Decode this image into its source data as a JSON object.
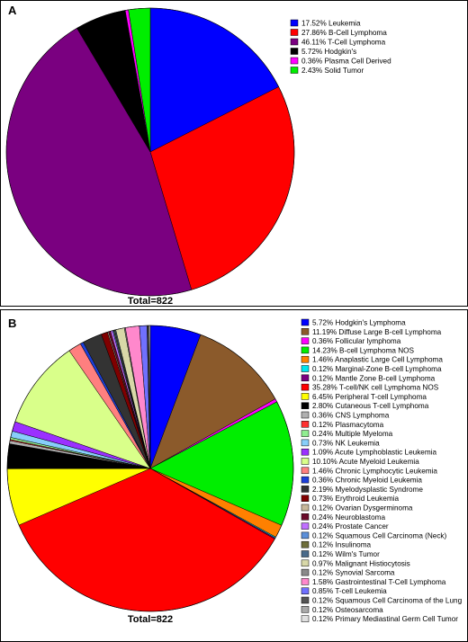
{
  "chart_data": [
    {
      "panel": "A",
      "type": "pie",
      "total_label": "Total=822",
      "slices": [
        {
          "label": "17.52% Leukemia",
          "value": 17.52,
          "color": "#0000ff"
        },
        {
          "label": "27.86% B-Cell Lymphoma",
          "value": 27.86,
          "color": "#ff0000"
        },
        {
          "label": "46.11% T-Cell Lymphoma",
          "value": 46.11,
          "color": "#7a0080"
        },
        {
          "label": "5.72% Hodgkin's",
          "value": 5.72,
          "color": "#000000"
        },
        {
          "label": "0.36% Plasma Cell Derived",
          "value": 0.36,
          "color": "#ff00ff"
        },
        {
          "label": "2.43% Solid Tumor",
          "value": 2.43,
          "color": "#00ee00"
        }
      ]
    },
    {
      "panel": "B",
      "type": "pie",
      "total_label": "Total=822",
      "slices": [
        {
          "label": "5.72% Hodgkin's Lymphoma",
          "value": 5.72,
          "color": "#0000ff"
        },
        {
          "label": "11.19% Diffuse Large B-cell Lymphoma",
          "value": 11.19,
          "color": "#8b5a2b"
        },
        {
          "label": "0.36% Follicular lymphoma",
          "value": 0.36,
          "color": "#ff00ff"
        },
        {
          "label": "14.23% B-cell Lymphoma NOS",
          "value": 14.23,
          "color": "#00ee00"
        },
        {
          "label": "1.46% Anaplastic Large Cell Lymphoma",
          "value": 1.46,
          "color": "#ff8000"
        },
        {
          "label": "0.12% Marginal-Zone B-cell Lymphoma",
          "value": 0.12,
          "color": "#00e5ee"
        },
        {
          "label": "0.12% Mantle Zone B-cell Lymphoma",
          "value": 0.12,
          "color": "#7a0080"
        },
        {
          "label": "35.28% T-cell/NK cell Lymphoma NOS",
          "value": 35.28,
          "color": "#ff0000"
        },
        {
          "label": "6.45% Peripheral T-cell Lymphoma",
          "value": 6.45,
          "color": "#ffff00"
        },
        {
          "label": "2.80% Cutaneous T-cell Lymphoma",
          "value": 2.8,
          "color": "#000000"
        },
        {
          "label": "0.36% CNS Lymphoma",
          "value": 0.36,
          "color": "#b0b0b0"
        },
        {
          "label": "0.12% Plasmacytoma",
          "value": 0.12,
          "color": "#ff3030"
        },
        {
          "label": "0.24% Multiple Myeloma",
          "value": 0.24,
          "color": "#90ee90"
        },
        {
          "label": "0.73% NK Leukemia",
          "value": 0.73,
          "color": "#87cefa"
        },
        {
          "label": "1.09% Acute Lymphoblastic Leukemia",
          "value": 1.09,
          "color": "#9b30ff"
        },
        {
          "label": "10.10% Acute Myeloid Leukemia",
          "value": 10.1,
          "color": "#d9ff8a"
        },
        {
          "label": "1.46% Chronic Lymphocytic Leukemia",
          "value": 1.46,
          "color": "#ff7f7f"
        },
        {
          "label": "0.36% Chronic Myeloid Leukemia",
          "value": 0.36,
          "color": "#1c3fd9"
        },
        {
          "label": "2.19% Myelodysplastic Syndrome",
          "value": 2.19,
          "color": "#333333"
        },
        {
          "label": "0.73% Erythroid Leukemia",
          "value": 0.73,
          "color": "#800000"
        },
        {
          "label": "0.12% Ovarian Dysgerminoma",
          "value": 0.12,
          "color": "#c8b89a"
        },
        {
          "label": "0.24% Neuroblastoma",
          "value": 0.24,
          "color": "#6b0a2a"
        },
        {
          "label": "0.24% Prostate Cancer",
          "value": 0.24,
          "color": "#c070ff"
        },
        {
          "label": "0.12% Squamous Cell Carcinoma (Neck)",
          "value": 0.12,
          "color": "#5b8fd9"
        },
        {
          "label": "0.12% Insulinoma",
          "value": 0.12,
          "color": "#6e6e3a"
        },
        {
          "label": "0.12% Wilm's Tumor",
          "value": 0.12,
          "color": "#4a6a8a"
        },
        {
          "label": "0.97% Malignant Histiocytosis",
          "value": 0.97,
          "color": "#d8d8a8"
        },
        {
          "label": "0.12% Synovial Sarcoma",
          "value": 0.12,
          "color": "#8a8a8a"
        },
        {
          "label": "1.58% Gastrointestinal T-Cell Lymphoma",
          "value": 1.58,
          "color": "#ff88cc"
        },
        {
          "label": "0.85% T-cell Leukemia",
          "value": 0.85,
          "color": "#7070ff"
        },
        {
          "label": "0.12% Squamous Cell Carcinoma of the Lung",
          "value": 0.12,
          "color": "#555555"
        },
        {
          "label": "0.12% Osteosarcoma",
          "value": 0.12,
          "color": "#a9a9a9"
        },
        {
          "label": "0.12% Primary Mediastinal Germ Cell Tumor",
          "value": 0.12,
          "color": "#e0e0e0"
        }
      ]
    }
  ]
}
